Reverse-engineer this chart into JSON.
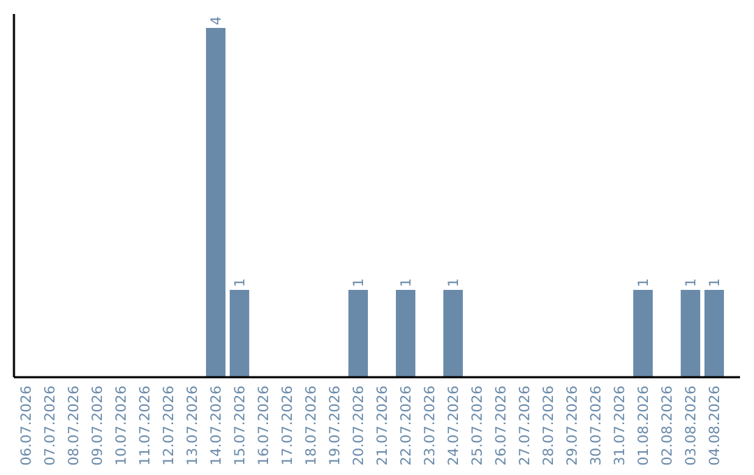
{
  "chart_data": {
    "type": "bar",
    "categories": [
      "06.07.2026",
      "07.07.2026",
      "08.07.2026",
      "09.07.2026",
      "10.07.2026",
      "11.07.2026",
      "12.07.2026",
      "13.07.2026",
      "14.07.2026",
      "15.07.2026",
      "16.07.2026",
      "17.07.2026",
      "18.07.2026",
      "19.07.2026",
      "20.07.2026",
      "21.07.2026",
      "22.07.2026",
      "23.07.2026",
      "24.07.2026",
      "25.07.2026",
      "26.07.2026",
      "27.07.2026",
      "28.07.2026",
      "29.07.2026",
      "30.07.2026",
      "31.07.2026",
      "01.08.2026",
      "02.08.2026",
      "03.08.2026",
      "04.08.2026"
    ],
    "values": [
      0,
      0,
      0,
      0,
      0,
      0,
      0,
      0,
      4,
      1,
      0,
      0,
      0,
      0,
      1,
      0,
      1,
      0,
      1,
      0,
      0,
      0,
      0,
      0,
      0,
      0,
      1,
      0,
      1,
      1
    ],
    "value_labels": [
      null,
      null,
      null,
      null,
      null,
      null,
      null,
      null,
      "4",
      "1",
      null,
      null,
      null,
      null,
      "1",
      null,
      "1",
      null,
      "1",
      null,
      null,
      null,
      null,
      null,
      null,
      null,
      "1",
      null,
      "1",
      "1"
    ],
    "color": "#6a8aaa",
    "tick_labels": "x"
  }
}
